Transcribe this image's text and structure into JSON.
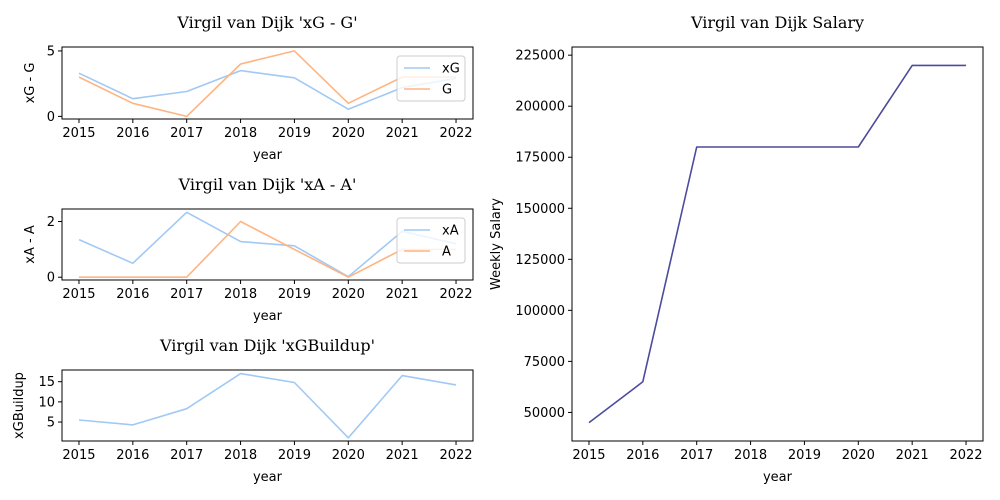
{
  "chart_data": [
    {
      "type": "line",
      "title": "Virgil van Dijk 'xG - G'",
      "xlabel": "year",
      "ylabel": "xG - G",
      "x": [
        2015,
        2016,
        2017,
        2018,
        2019,
        2020,
        2021,
        2022
      ],
      "xticks": [
        "2015",
        "2016",
        "2017",
        "2018",
        "2019",
        "2020",
        "2021",
        "2022"
      ],
      "yticks": [
        "0",
        "5"
      ],
      "ylim": [
        -0.2,
        5.3
      ],
      "legend": "upper right",
      "series": [
        {
          "name": "xG",
          "color": "#a1c9f4",
          "values": [
            3.3,
            1.35,
            1.9,
            3.5,
            2.95,
            0.55,
            2.2,
            2.9
          ]
        },
        {
          "name": "G",
          "color": "#ffb482",
          "values": [
            3,
            1,
            0,
            4,
            5,
            1,
            3,
            3
          ]
        }
      ]
    },
    {
      "type": "line",
      "title": "Virgil van Dijk 'xA - A'",
      "xlabel": "year",
      "ylabel": "xA - A",
      "x": [
        2015,
        2016,
        2017,
        2018,
        2019,
        2020,
        2021,
        2022
      ],
      "xticks": [
        "2015",
        "2016",
        "2017",
        "2018",
        "2019",
        "2020",
        "2021",
        "2022"
      ],
      "yticks": [
        "0",
        "2"
      ],
      "ylim": [
        -0.1,
        2.45
      ],
      "legend": "upper right",
      "series": [
        {
          "name": "xA",
          "color": "#a1c9f4",
          "values": [
            1.35,
            0.5,
            2.33,
            1.28,
            1.13,
            0.02,
            1.65,
            1.2
          ]
        },
        {
          "name": "A",
          "color": "#ffb482",
          "values": [
            0,
            0,
            0,
            2,
            1,
            0,
            1,
            1
          ]
        }
      ]
    },
    {
      "type": "line",
      "title": "Virgil van Dijk 'xGBuildup'",
      "xlabel": "year",
      "ylabel": "xGBuildup",
      "x": [
        2015,
        2016,
        2017,
        2018,
        2019,
        2020,
        2021,
        2022
      ],
      "xticks": [
        "2015",
        "2016",
        "2017",
        "2018",
        "2019",
        "2020",
        "2021",
        "2022"
      ],
      "yticks": [
        "5",
        "10",
        "15"
      ],
      "ylim": [
        0.3,
        17.9
      ],
      "series": [
        {
          "color": "#a1c9f4",
          "values": [
            5.5,
            4.3,
            8.3,
            17,
            14.8,
            1.1,
            16.5,
            14.2
          ]
        }
      ]
    },
    {
      "type": "line",
      "title": "Virgil van Dijk Salary",
      "xlabel": "year",
      "ylabel": "Weekly Salary",
      "x": [
        2015,
        2016,
        2017,
        2018,
        2019,
        2020,
        2021,
        2022
      ],
      "xticks": [
        "2015",
        "2016",
        "2017",
        "2018",
        "2019",
        "2020",
        "2021",
        "2022"
      ],
      "yticks": [
        "50000",
        "75000",
        "100000",
        "125000",
        "150000",
        "175000",
        "200000",
        "225000"
      ],
      "ylim": [
        36000,
        229000
      ],
      "series": [
        {
          "color": "#4c4c9d",
          "values": [
            45000,
            65000,
            180000,
            180000,
            180000,
            180000,
            220000,
            220000
          ]
        }
      ]
    }
  ]
}
